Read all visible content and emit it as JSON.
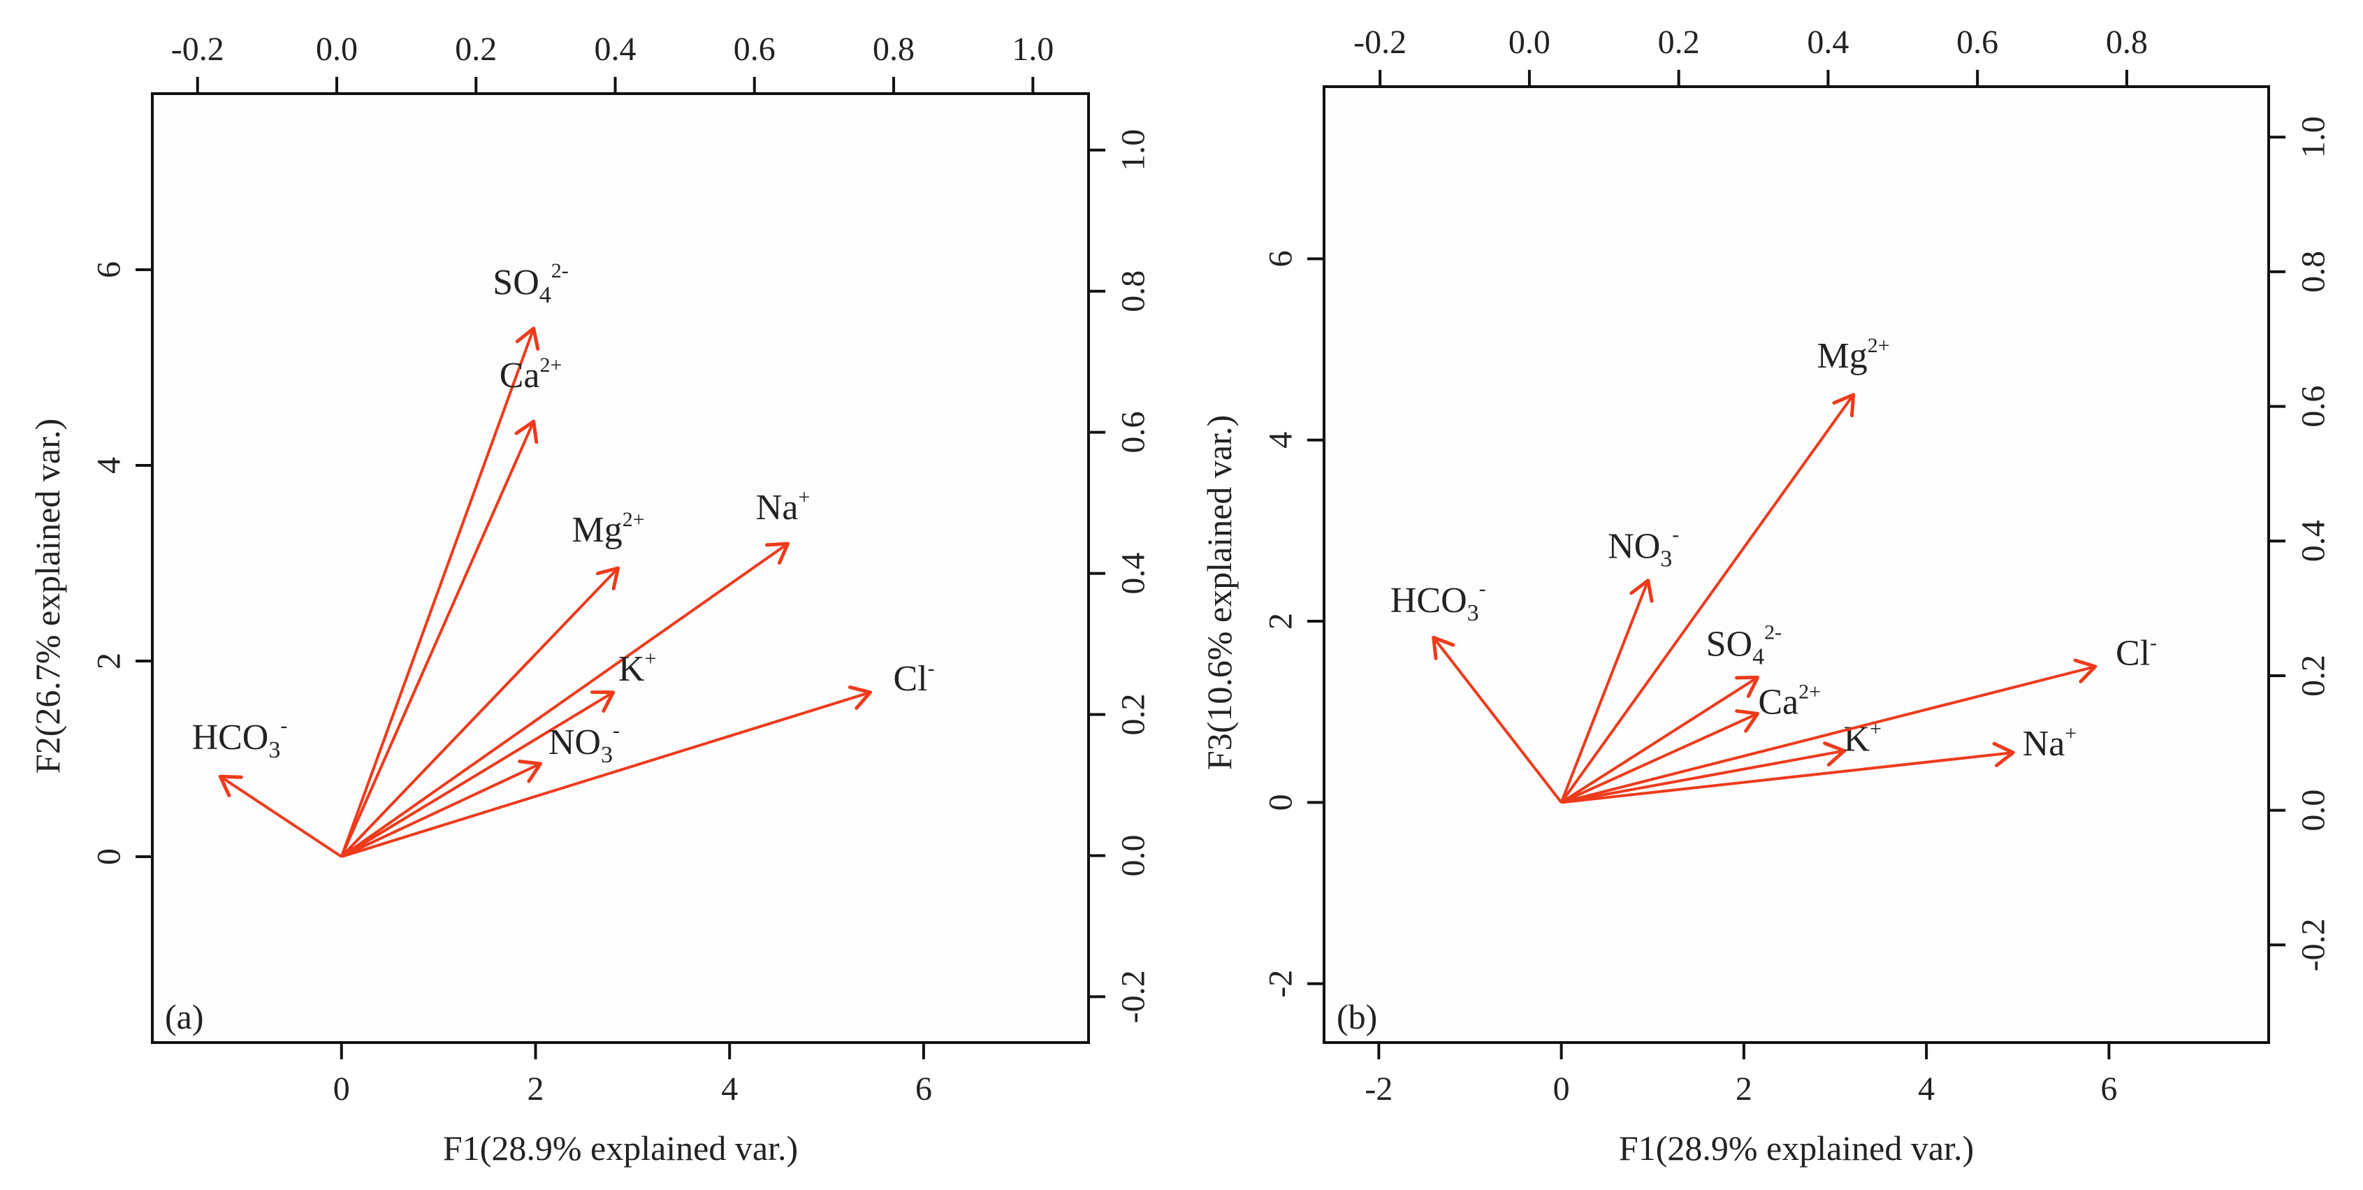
{
  "arrow_color": "#ee3a1b",
  "frame_color": "#111111",
  "chart_data": [
    {
      "type": "biplot",
      "panel_label": "(a)",
      "xlabel": "F1(28.9% explained var.)",
      "ylabel": "F2(26.7% explained var.)",
      "xlim": [
        -1.95,
        7.7
      ],
      "ylim": [
        -1.9,
        7.8
      ],
      "x_ticks": [
        0,
        2,
        4,
        6
      ],
      "x_tick_labels": [
        "0",
        "2",
        "4",
        "6"
      ],
      "y_ticks": [
        0,
        2,
        4,
        6
      ],
      "y_tick_labels": [
        "0",
        "2",
        "4",
        "6"
      ],
      "top_axis": {
        "lim": [
          -0.265,
          1.08
        ],
        "ticks": [
          -0.2,
          0.0,
          0.2,
          0.4,
          0.6,
          0.8,
          1.0
        ],
        "tick_labels": [
          "-0.2",
          "0.0",
          "0.2",
          "0.4",
          "0.6",
          "0.8",
          "1.0"
        ]
      },
      "right_axis": {
        "lim": [
          -0.265,
          1.08
        ],
        "ticks": [
          -0.2,
          0.0,
          0.2,
          0.4,
          0.6,
          0.8,
          1.0
        ],
        "tick_labels": [
          "-0.2",
          "0.0",
          "0.2",
          "0.4",
          "0.6",
          "0.8",
          "1.0"
        ]
      },
      "arrows": [
        {
          "base": "SO",
          "sub": "4",
          "sup": "2-",
          "x": 1.98,
          "y": 5.4,
          "label_x": 1.95,
          "label_y": 5.75
        },
        {
          "base": "Ca",
          "sub": "",
          "sup": "2+",
          "x": 1.98,
          "y": 4.45,
          "label_x": 1.95,
          "label_y": 4.8
        },
        {
          "base": "Mg",
          "sub": "",
          "sup": "2+",
          "x": 2.85,
          "y": 2.95,
          "label_x": 2.75,
          "label_y": 3.22
        },
        {
          "base": "Na",
          "sub": "",
          "sup": "+",
          "x": 4.6,
          "y": 3.2,
          "label_x": 4.55,
          "label_y": 3.45
        },
        {
          "base": "K",
          "sub": "",
          "sup": "+",
          "x": 2.8,
          "y": 1.68,
          "label_x": 3.05,
          "label_y": 1.8
        },
        {
          "base": "NO",
          "sub": "3",
          "sup": "-",
          "x": 2.05,
          "y": 0.95,
          "label_x": 2.5,
          "label_y": 1.05
        },
        {
          "base": "Cl",
          "sub": "",
          "sup": "-",
          "x": 5.45,
          "y": 1.68,
          "label_x": 5.9,
          "label_y": 1.7
        },
        {
          "base": "HCO",
          "sub": "3",
          "sup": "-",
          "x": -1.25,
          "y": 0.82,
          "label_x": -1.05,
          "label_y": 1.1
        }
      ]
    },
    {
      "type": "biplot",
      "panel_label": "(b)",
      "xlabel": "F1(28.9% explained var.)",
      "ylabel": "F3(10.6% explained var.)",
      "xlim": [
        -2.6,
        7.75
      ],
      "ylim": [
        -2.65,
        7.9
      ],
      "x_ticks": [
        -2,
        0,
        2,
        4,
        6
      ],
      "x_tick_labels": [
        "-2",
        "0",
        "2",
        "4",
        "6"
      ],
      "y_ticks": [
        -2,
        0,
        2,
        4,
        6
      ],
      "y_tick_labels": [
        "-2",
        "0",
        "2",
        "4",
        "6"
      ],
      "top_axis": {
        "lim": [
          -0.275,
          0.99
        ],
        "ticks": [
          -0.2,
          0.0,
          0.2,
          0.4,
          0.6,
          0.8
        ],
        "tick_labels": [
          "-0.2",
          "0.0",
          "0.2",
          "0.4",
          "0.6",
          "0.8"
        ]
      },
      "right_axis": {
        "lim": [
          -0.345,
          1.075
        ],
        "ticks": [
          -0.2,
          0.0,
          0.2,
          0.4,
          0.6,
          0.8,
          1.0
        ],
        "tick_labels": [
          "-0.2",
          "0.0",
          "0.2",
          "0.4",
          "0.6",
          "0.8",
          "1.0"
        ]
      },
      "arrows": [
        {
          "base": "Mg",
          "sub": "",
          "sup": "2+",
          "x": 3.2,
          "y": 4.5,
          "label_x": 3.2,
          "label_y": 4.8
        },
        {
          "base": "NO",
          "sub": "3",
          "sup": "-",
          "x": 0.95,
          "y": 2.45,
          "label_x": 0.9,
          "label_y": 2.7
        },
        {
          "base": "HCO",
          "sub": "3",
          "sup": "-",
          "x": -1.4,
          "y": 1.82,
          "label_x": -1.35,
          "label_y": 2.1
        },
        {
          "base": "SO",
          "sub": "4",
          "sup": "2-",
          "x": 2.15,
          "y": 1.38,
          "label_x": 2.0,
          "label_y": 1.62
        },
        {
          "base": "Ca",
          "sub": "",
          "sup": "2+",
          "x": 2.15,
          "y": 0.98,
          "label_x": 2.5,
          "label_y": 0.98
        },
        {
          "base": "K",
          "sub": "",
          "sup": "+",
          "x": 3.1,
          "y": 0.57,
          "label_x": 3.3,
          "label_y": 0.57
        },
        {
          "base": "Na",
          "sub": "",
          "sup": "+",
          "x": 4.95,
          "y": 0.55,
          "label_x": 5.35,
          "label_y": 0.52
        },
        {
          "base": "Cl",
          "sub": "",
          "sup": "-",
          "x": 5.85,
          "y": 1.5,
          "label_x": 6.3,
          "label_y": 1.52
        }
      ]
    }
  ]
}
